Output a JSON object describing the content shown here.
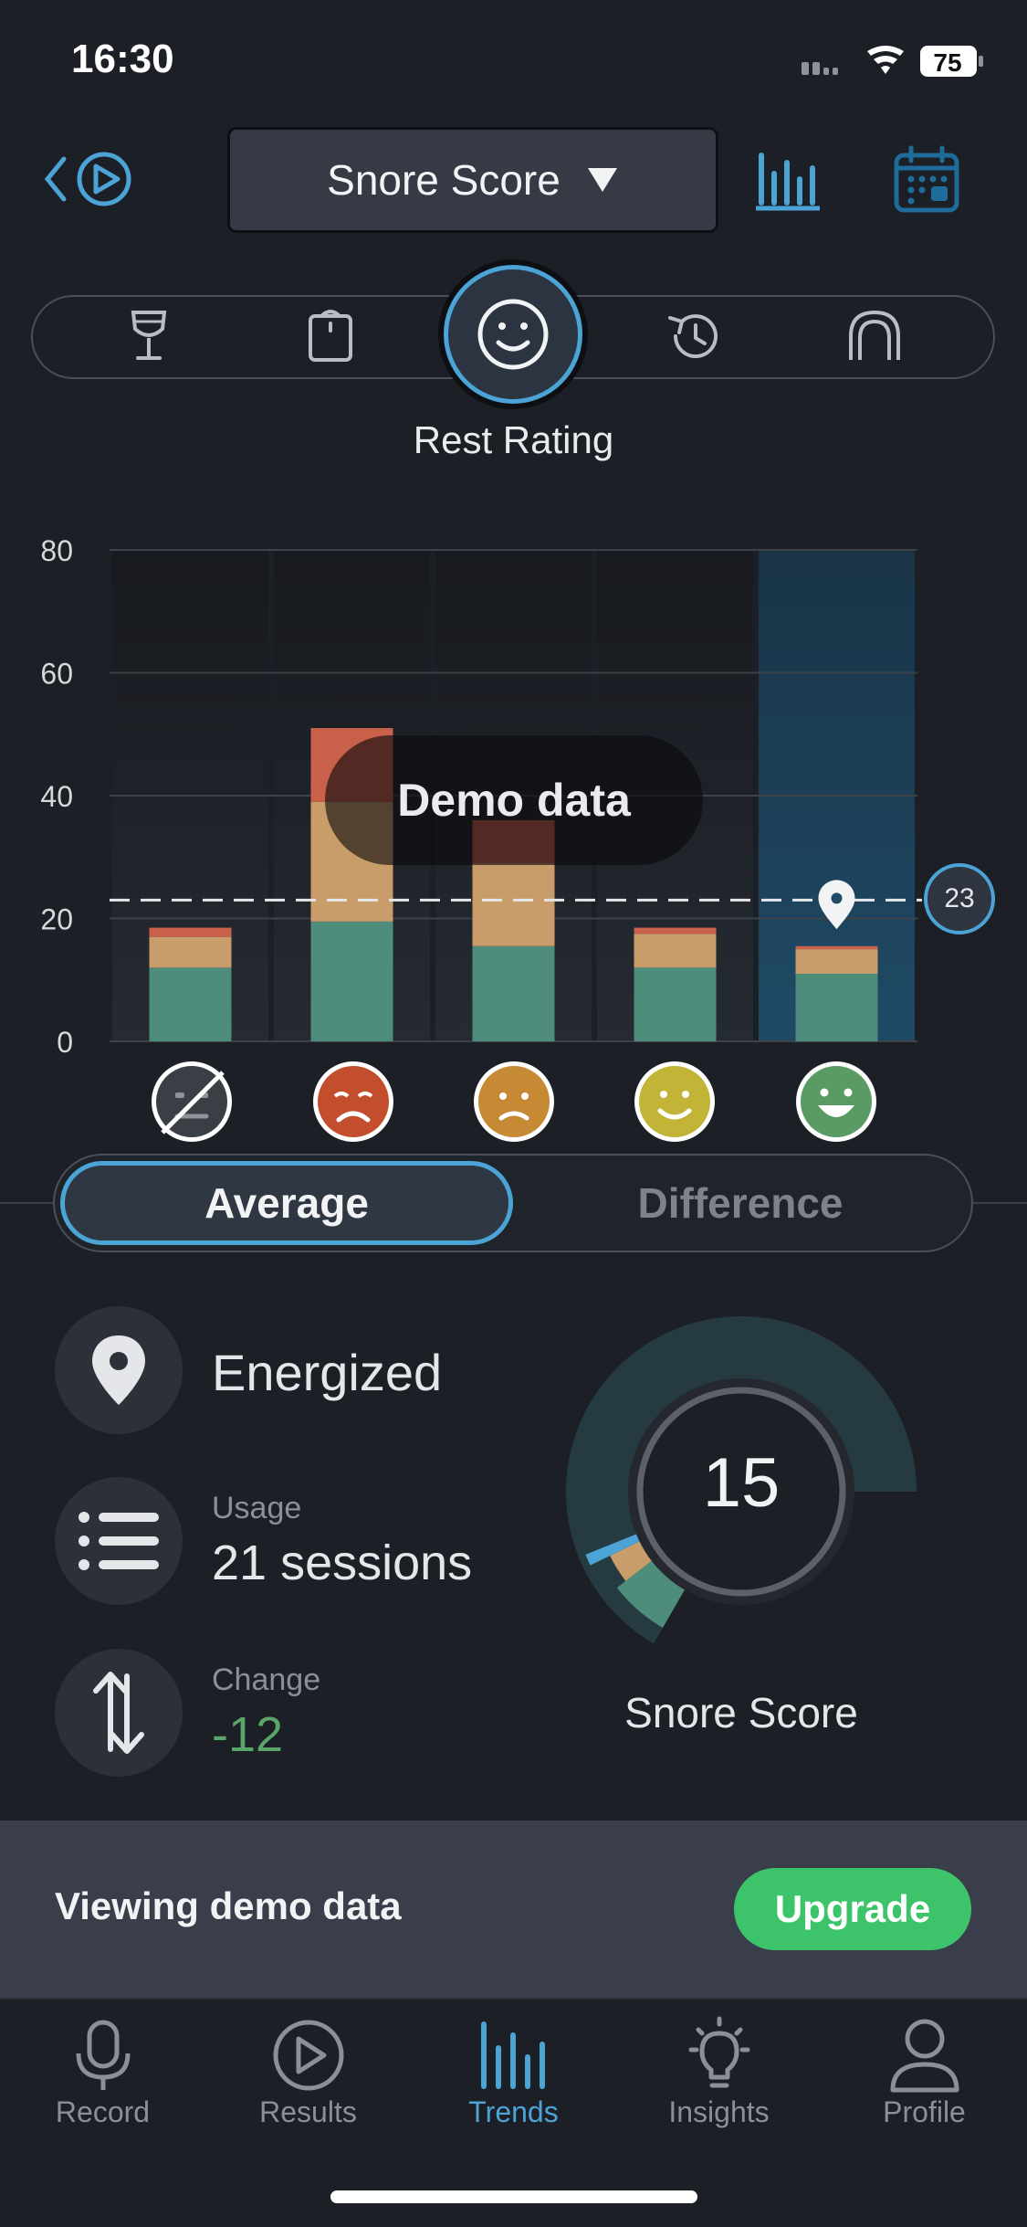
{
  "status_bar": {
    "time": "16:30",
    "battery": "75"
  },
  "header": {
    "metric_label": "Snore Score"
  },
  "filter_bar": {
    "items": [
      "wine-glass-icon",
      "scale-icon",
      "smiley-icon",
      "history-icon",
      "mouthguard-icon"
    ],
    "selected_label": "Rest Rating"
  },
  "chart_data": {
    "type": "bar",
    "stacked": true,
    "categories": [
      "No rating",
      "Bad",
      "Poor",
      "Good",
      "Energized"
    ],
    "series": [
      {
        "color": "#4e8c7c",
        "values": [
          12,
          19.5,
          15.5,
          12,
          11
        ]
      },
      {
        "color": "#c99d6a",
        "values": [
          5,
          19.5,
          13.5,
          5.5,
          4
        ]
      },
      {
        "color": "#c9604a",
        "values": [
          1.5,
          12,
          7,
          1,
          0.5
        ]
      }
    ],
    "y_ticks": [
      "0",
      "20",
      "40",
      "60",
      "80"
    ],
    "ylim": [
      0,
      80
    ],
    "baseline": 23,
    "baseline_label": "23",
    "highlight_category": "Energized",
    "overlay_text": "Demo data"
  },
  "faces": [
    {
      "name": "no-rating-face-icon",
      "color": "#3a3e45"
    },
    {
      "name": "bad-face-icon",
      "color": "#c24e2d"
    },
    {
      "name": "poor-face-icon",
      "color": "#c68a34"
    },
    {
      "name": "good-face-icon",
      "color": "#c2b436"
    },
    {
      "name": "energized-face-icon",
      "color": "#5a9a64"
    }
  ],
  "toggle": {
    "average": "Average",
    "difference": "Difference"
  },
  "stats": {
    "rating": "Energized",
    "usage_caption": "Usage",
    "usage_value": "21 sessions",
    "change_caption": "Change",
    "change_value": "-12"
  },
  "gauge": {
    "value": "15",
    "label": "Snore Score",
    "fraction": 0.15
  },
  "demo_banner": {
    "text": "Viewing demo data",
    "button": "Upgrade"
  },
  "tabs": [
    {
      "label": "Record",
      "icon": "microphone-icon"
    },
    {
      "label": "Results",
      "icon": "play-circle-icon"
    },
    {
      "label": "Trends",
      "icon": "bar-chart-icon",
      "active": true
    },
    {
      "label": "Insights",
      "icon": "lightbulb-icon"
    },
    {
      "label": "Profile",
      "icon": "person-icon"
    }
  ]
}
